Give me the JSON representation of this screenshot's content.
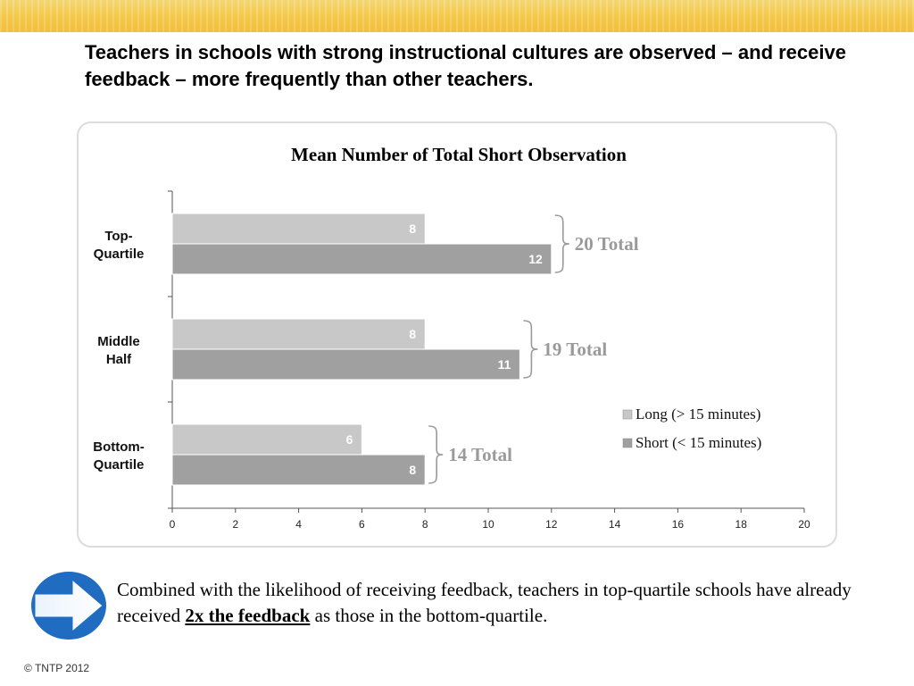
{
  "header": {
    "title": "Teachers in schools with strong instructional cultures are observed – and receive feedback – more frequently than other teachers."
  },
  "chart_data": {
    "type": "bar",
    "orientation": "horizontal",
    "stacked": false,
    "title": "Mean Number of Total Short Observation",
    "categories": [
      "Top-Quartile",
      "Middle Half",
      "Bottom-Quartile"
    ],
    "category_lines": [
      [
        "Top-",
        "Quartile"
      ],
      [
        "Middle",
        "Half"
      ],
      [
        "Bottom-",
        "Quartile"
      ]
    ],
    "series": [
      {
        "name": "Long (> 15 minutes)",
        "values": [
          8,
          8,
          6
        ],
        "color": "#c8c8c8"
      },
      {
        "name": "Short (< 15 minutes)",
        "values": [
          12,
          11,
          8
        ],
        "color": "#a0a0a0"
      }
    ],
    "totals": [
      "20 Total",
      "19 Total",
      "14 Total"
    ],
    "total_values": [
      20,
      19,
      14
    ],
    "xlim": [
      0,
      20
    ],
    "xticks": [
      "0",
      "2",
      "4",
      "6",
      "8",
      "10",
      "12",
      "14",
      "16",
      "18",
      "20"
    ],
    "grid": false,
    "legend_position": "right",
    "data_label_color": "#ffffff",
    "annotation_color": "#9a9a9a"
  },
  "footer": {
    "text_before": "Combined with the likelihood of receiving feedback, teachers in top-quartile schools have already received ",
    "emphasis": "2x the feedback",
    "text_after": " as those in the bottom-quartile.",
    "copyright": "© TNTP 2012"
  },
  "icons": {
    "callout": "arrow-right-icon"
  },
  "colors": {
    "accent": "#f2c43d",
    "arrow_blue": "#1f6cc1"
  }
}
